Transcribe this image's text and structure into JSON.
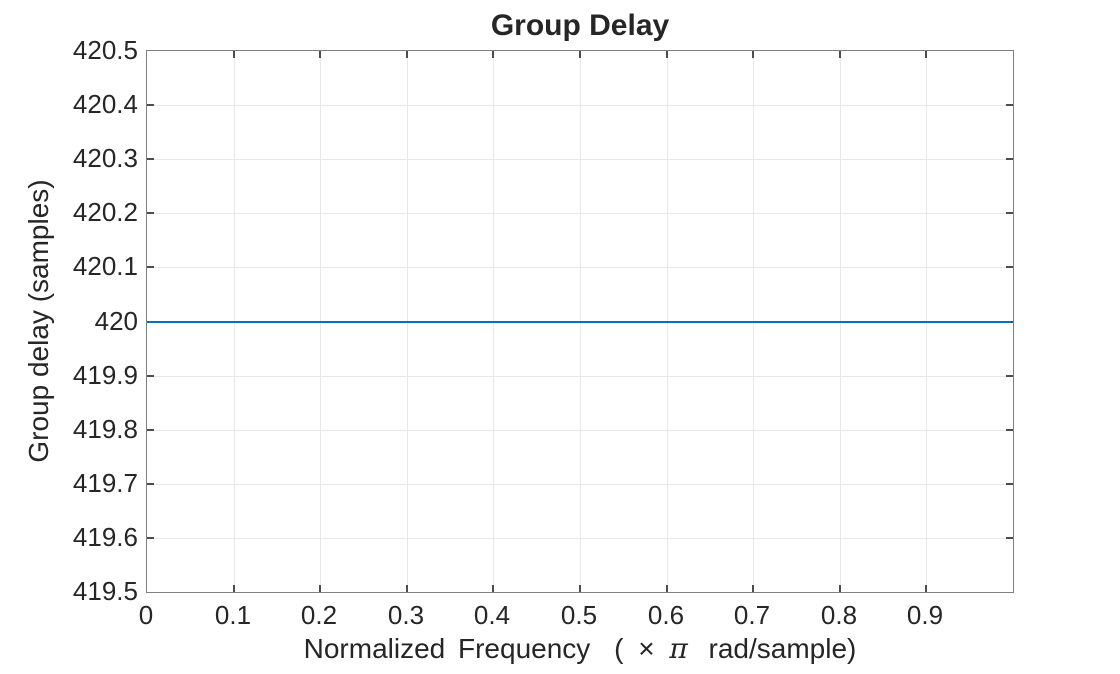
{
  "colors": {
    "accent_line": "#0072BD",
    "axis": "#7f7f7f",
    "tick": "#4d4d4d",
    "grid": "#e8e8e8",
    "text": "#262626",
    "background": "#ffffff"
  },
  "chart_data": {
    "type": "line",
    "title": "Group Delay",
    "xlabel": {
      "full": "Normalized Frequency (× π rad/sample)",
      "prefix": "Normalized Frequency",
      "paren": "(",
      "times": "×",
      "pi": "π",
      "suffix": "rad/sample)"
    },
    "ylabel": "Group delay (samples)",
    "xlim": [
      0,
      1
    ],
    "ylim": [
      419.5,
      420.5
    ],
    "x_ticks": [
      0,
      0.1,
      0.2,
      0.3,
      0.4,
      0.5,
      0.6,
      0.7,
      0.8,
      0.9
    ],
    "x_tick_labels": [
      "0",
      "0.1",
      "0.2",
      "0.3",
      "0.4",
      "0.5",
      "0.6",
      "0.7",
      "0.8",
      "0.9"
    ],
    "y_ticks": [
      419.5,
      419.6,
      419.7,
      419.8,
      419.9,
      420,
      420.1,
      420.2,
      420.3,
      420.4,
      420.5
    ],
    "y_tick_labels": [
      "419.5",
      "419.6",
      "419.7",
      "419.8",
      "419.9",
      "420",
      "420.1",
      "420.2",
      "420.3",
      "420.4",
      "420.5"
    ],
    "grid": true,
    "legend": "none",
    "series": [
      {
        "name": "group delay",
        "color": "#0072BD",
        "x": [
          0,
          0.998
        ],
        "values": [
          420,
          420
        ],
        "constant_value": 420
      }
    ]
  }
}
